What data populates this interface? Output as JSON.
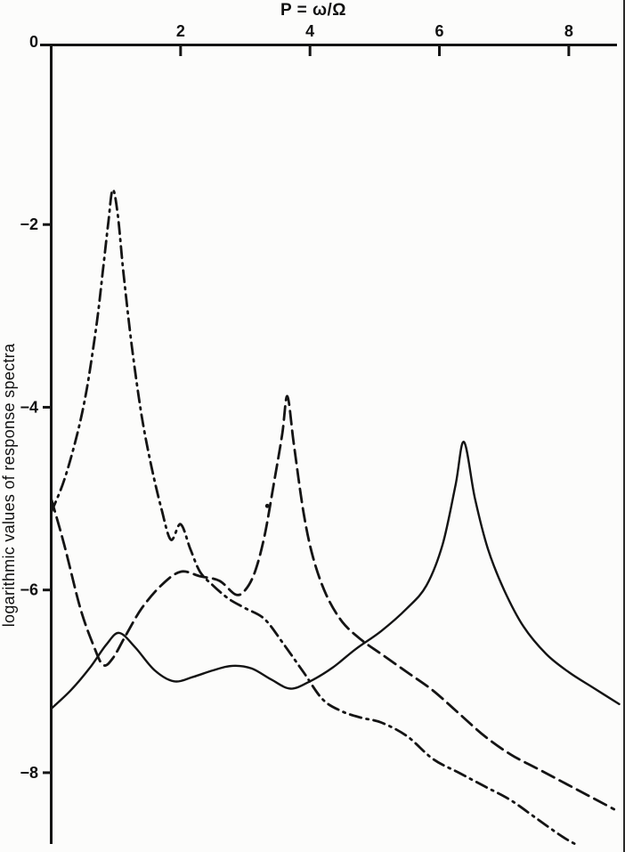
{
  "chart_data": {
    "type": "line",
    "title": "P = ω/Ω",
    "xlabel": "P = ω/Ω",
    "ylabel": "logarithmic values of response spectra",
    "xlim": [
      0,
      8.8
    ],
    "ylim": [
      -8.8,
      0
    ],
    "x_axis_position": "top",
    "x_ticks": [
      2,
      4,
      6,
      8
    ],
    "y_ticks": [
      0,
      -2,
      -4,
      -6,
      -8
    ],
    "grid": false,
    "legend": "none",
    "line_color": "#141414",
    "series": [
      {
        "name": "solid-curve",
        "style": "solid",
        "x": [
          0,
          0.3,
          0.6,
          0.85,
          1.05,
          1.3,
          1.6,
          1.9,
          2.2,
          2.5,
          2.8,
          3.1,
          3.4,
          3.7,
          4.0,
          4.35,
          4.7,
          5.1,
          5.5,
          5.8,
          6.05,
          6.25,
          6.38,
          6.55,
          6.75,
          7.0,
          7.3,
          7.65,
          8.0,
          8.4,
          8.78
        ],
        "y": [
          -7.3,
          -7.1,
          -6.85,
          -6.6,
          -6.47,
          -6.63,
          -6.88,
          -7.0,
          -6.95,
          -6.88,
          -6.83,
          -6.86,
          -6.98,
          -7.08,
          -7.0,
          -6.85,
          -6.65,
          -6.45,
          -6.2,
          -5.95,
          -5.5,
          -4.85,
          -4.38,
          -5.0,
          -5.55,
          -6.0,
          -6.4,
          -6.7,
          -6.9,
          -7.08,
          -7.25
        ]
      },
      {
        "name": "dashed-curve",
        "style": "dashed",
        "x": [
          0,
          0.2,
          0.45,
          0.65,
          0.8,
          0.95,
          1.15,
          1.4,
          1.7,
          2.0,
          2.3,
          2.6,
          2.85,
          3.0,
          3.15,
          3.3,
          3.45,
          3.57,
          3.65,
          3.75,
          3.9,
          4.05,
          4.25,
          4.5,
          4.8,
          5.1,
          5.5,
          5.9,
          6.3,
          6.7,
          7.1,
          7.5,
          7.9,
          8.3,
          8.7
        ],
        "y": [
          -5.0,
          -5.5,
          -6.2,
          -6.6,
          -6.82,
          -6.75,
          -6.5,
          -6.2,
          -5.95,
          -5.8,
          -5.85,
          -5.9,
          -6.05,
          -6.0,
          -5.8,
          -5.4,
          -4.8,
          -4.3,
          -3.88,
          -4.4,
          -5.15,
          -5.65,
          -6.05,
          -6.35,
          -6.55,
          -6.7,
          -6.9,
          -7.1,
          -7.35,
          -7.6,
          -7.8,
          -7.95,
          -8.1,
          -8.25,
          -8.4
        ]
      },
      {
        "name": "dashdot-curve",
        "style": "dashdot",
        "x": [
          0,
          0.2,
          0.4,
          0.55,
          0.7,
          0.8,
          0.88,
          0.95,
          1.03,
          1.12,
          1.25,
          1.4,
          1.55,
          1.7,
          1.85,
          2.0,
          2.15,
          2.3,
          2.5,
          2.75,
          3.0,
          3.3,
          3.6,
          3.9,
          4.2,
          4.5,
          4.8,
          5.1,
          5.5,
          5.9,
          6.3,
          6.7,
          7.1,
          7.5,
          7.9,
          8.15
        ],
        "y": [
          -5.15,
          -4.8,
          -4.3,
          -3.8,
          -3.1,
          -2.5,
          -2.0,
          -1.62,
          -1.9,
          -2.55,
          -3.35,
          -4.1,
          -4.65,
          -5.1,
          -5.45,
          -5.28,
          -5.55,
          -5.8,
          -5.95,
          -6.1,
          -6.2,
          -6.32,
          -6.6,
          -6.9,
          -7.2,
          -7.33,
          -7.4,
          -7.45,
          -7.6,
          -7.85,
          -8.0,
          -8.15,
          -8.3,
          -8.5,
          -8.7,
          -8.8
        ]
      }
    ],
    "annotations": [
      {
        "type": "dot",
        "x": 3.34,
        "y": -5.08
      }
    ]
  }
}
